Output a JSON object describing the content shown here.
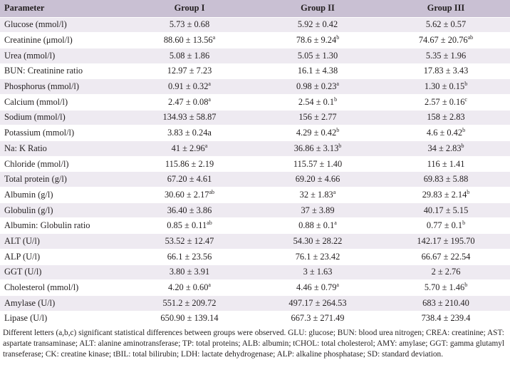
{
  "table": {
    "headers": [
      "Parameter",
      "Group I",
      "Group II",
      "Group III"
    ],
    "rows": [
      {
        "parameter": "Glucose (mmol/l)",
        "g1": "5.73 ± 0.68",
        "g1_sup": "",
        "g2": "5.92 ± 0.42",
        "g2_sup": "",
        "g3": "5.62 ± 0.57",
        "g3_sup": ""
      },
      {
        "parameter": "Creatinine (μmol/l)",
        "g1": "88.60 ± 13.56",
        "g1_sup": "a",
        "g2": "78.6 ± 9.24",
        "g2_sup": "b",
        "g3": "74.67 ± 20.76",
        "g3_sup": "ab"
      },
      {
        "parameter": "Urea (mmol/l)",
        "g1": "5.08 ± 1.86",
        "g1_sup": "",
        "g2": "5.05 ± 1.30",
        "g2_sup": "",
        "g3": "5.35 ± 1.96",
        "g3_sup": ""
      },
      {
        "parameter": "BUN: Creatinine ratio",
        "g1": "12.97 ± 7.23",
        "g1_sup": "",
        "g2": "16.1 ± 4.38",
        "g2_sup": "",
        "g3": "17.83 ± 3.43",
        "g3_sup": ""
      },
      {
        "parameter": "Phosphorus (mmol/l)",
        "g1": "0.91 ± 0.32",
        "g1_sup": "a",
        "g2": "0.98 ± 0.23",
        "g2_sup": "a",
        "g3": "1.30 ± 0.15",
        "g3_sup": "b"
      },
      {
        "parameter": "Calcium (mmol/l)",
        "g1": "2.47 ± 0.08",
        "g1_sup": "a",
        "g2": "2.54 ± 0.1",
        "g2_sup": "b",
        "g3": "2.57 ± 0.16",
        "g3_sup": "c"
      },
      {
        "parameter": "Sodium (mmol/l)",
        "g1": "134.93 ± 58.87",
        "g1_sup": "",
        "g2": "156 ± 2.77",
        "g2_sup": "",
        "g3": "158 ± 2.83",
        "g3_sup": ""
      },
      {
        "parameter": "Potassium (mmol/l)",
        "g1": "3.83 ± 0.24a",
        "g1_sup": "",
        "g2": "4.29 ± 0.42",
        "g2_sup": "b",
        "g3": "4.6 ± 0.42",
        "g3_sup": "b"
      },
      {
        "parameter": "Na: K Ratio",
        "g1": "41 ± 2.96",
        "g1_sup": "a",
        "g2": "36.86 ± 3.13",
        "g2_sup": "b",
        "g3": "34 ± 2.83",
        "g3_sup": "b"
      },
      {
        "parameter": "Chloride (mmol/l)",
        "g1": "115.86 ± 2.19",
        "g1_sup": "",
        "g2": "115.57 ± 1.40",
        "g2_sup": "",
        "g3": "116 ± 1.41",
        "g3_sup": ""
      },
      {
        "parameter": "Total protein (g/l)",
        "g1": "67.20 ± 4.61",
        "g1_sup": "",
        "g2": "69.20 ± 4.66",
        "g2_sup": "",
        "g3": "69.83 ± 5.88",
        "g3_sup": ""
      },
      {
        "parameter": "Albumin (g/l)",
        "g1": "30.60 ± 2.17",
        "g1_sup": "ab",
        "g2": "32 ± 1.83",
        "g2_sup": "a",
        "g3": "29.83 ± 2.14",
        "g3_sup": "b"
      },
      {
        "parameter": "Globulin (g/l)",
        "g1": "36.40 ± 3.86",
        "g1_sup": "",
        "g2": "37 ± 3.89",
        "g2_sup": "",
        "g3": "40.17 ± 5.15",
        "g3_sup": ""
      },
      {
        "parameter": "Albumin: Globulin ratio",
        "g1": "0.85 ± 0.11",
        "g1_sup": "ab",
        "g2": "0.88 ± 0.1",
        "g2_sup": "a",
        "g3": "0.77 ± 0.1",
        "g3_sup": "b"
      },
      {
        "parameter": "ALT (U/l)",
        "g1": "53.52 ± 12.47",
        "g1_sup": "",
        "g2": "54.30 ± 28.22",
        "g2_sup": "",
        "g3": "142.17 ± 195.70",
        "g3_sup": ""
      },
      {
        "parameter": "ALP (U/l)",
        "g1": "66.1 ± 23.56",
        "g1_sup": "",
        "g2": "76.1 ± 23.42",
        "g2_sup": "",
        "g3": "66.67 ± 22.54",
        "g3_sup": ""
      },
      {
        "parameter": "GGT (U/l)",
        "g1": "3.80 ± 3.91",
        "g1_sup": "",
        "g2": "3 ± 1.63",
        "g2_sup": "",
        "g3": "2 ± 2.76",
        "g3_sup": ""
      },
      {
        "parameter": "Cholesterol (mmol/l)",
        "g1": "4.20 ± 0.60",
        "g1_sup": "a",
        "g2": "4.46 ± 0.79",
        "g2_sup": "a",
        "g3": "5.70 ± 1.46",
        "g3_sup": "b"
      },
      {
        "parameter": "Amylase (U/l)",
        "g1": "551.2 ± 209.72",
        "g1_sup": "",
        "g2": "497.17 ± 264.53",
        "g2_sup": "",
        "g3": "683 ± 210.40",
        "g3_sup": ""
      },
      {
        "parameter": "Lipase (U/l)",
        "g1": "650.90 ± 139.14",
        "g1_sup": "",
        "g2": "667.3 ± 271.49",
        "g2_sup": "",
        "g3": "738.4 ± 239.4",
        "g3_sup": ""
      }
    ]
  },
  "footnote": "Different letters (a,b,c) significant statistical differences between groups were observed. GLU: glucose; BUN: blood urea nitrogen; CREA: creatinine; AST: aspartate transaminase; ALT: alanine aminotransferase; TP: total proteins; ALB: albumin; tCHOL: total cholesterol; AMY: amylase; GGT: gamma glutamyl transeferase; CK: creatine kinase; tBIL: total bilirubin; LDH: lactate dehydrogenase; ALP: alkaline phosphatase; SD: standard deviation.",
  "colors": {
    "header_bg": "#c9c0d3",
    "stripe_bg": "#eeeaf1",
    "text": "#231f20"
  }
}
